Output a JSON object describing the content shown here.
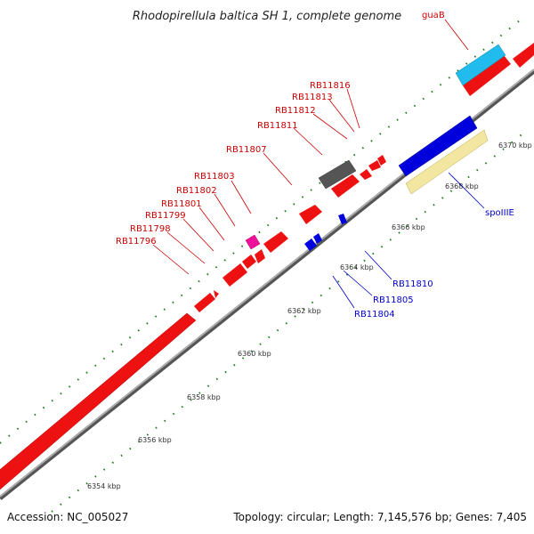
{
  "title": "Rhodopirellula baltica SH 1, complete genome",
  "footer": {
    "accession": "Accession: NC_005027",
    "summary": "Topology: circular; Length: 7,145,576 bp; Genes: 7,405"
  },
  "colors": {
    "forward_feature": "#ee1111",
    "reverse_feature": "#0000dd",
    "backbone": "#888888",
    "tick": "#1a7a1a",
    "guaB": "#22bbee",
    "spoIIIE": "#f2e6a0",
    "rRNA_like": "#555555",
    "small_feature": "#ee1199"
  },
  "scale": {
    "ticks": [
      {
        "label": "6354 kbp"
      },
      {
        "label": "6356 kbp"
      },
      {
        "label": "6358 kbp"
      },
      {
        "label": "6360 kbp"
      },
      {
        "label": "6362 kbp"
      },
      {
        "label": "6364 kbp"
      },
      {
        "label": "6366 kbp"
      },
      {
        "label": "6368 kbp"
      },
      {
        "label": "6370 kbp"
      }
    ]
  },
  "labels": {
    "forward": [
      {
        "text": "RB11796"
      },
      {
        "text": "RB11798"
      },
      {
        "text": "RB11799"
      },
      {
        "text": "RB11801"
      },
      {
        "text": "RB11802"
      },
      {
        "text": "RB11803"
      },
      {
        "text": "RB11807"
      },
      {
        "text": "RB11811"
      },
      {
        "text": "RB11812"
      },
      {
        "text": "RB11813"
      },
      {
        "text": "RB11816"
      },
      {
        "text": "guaB"
      }
    ],
    "reverse": [
      {
        "text": "RB11804"
      },
      {
        "text": "RB11805"
      },
      {
        "text": "RB11810"
      },
      {
        "text": "spoIIIE"
      }
    ]
  }
}
